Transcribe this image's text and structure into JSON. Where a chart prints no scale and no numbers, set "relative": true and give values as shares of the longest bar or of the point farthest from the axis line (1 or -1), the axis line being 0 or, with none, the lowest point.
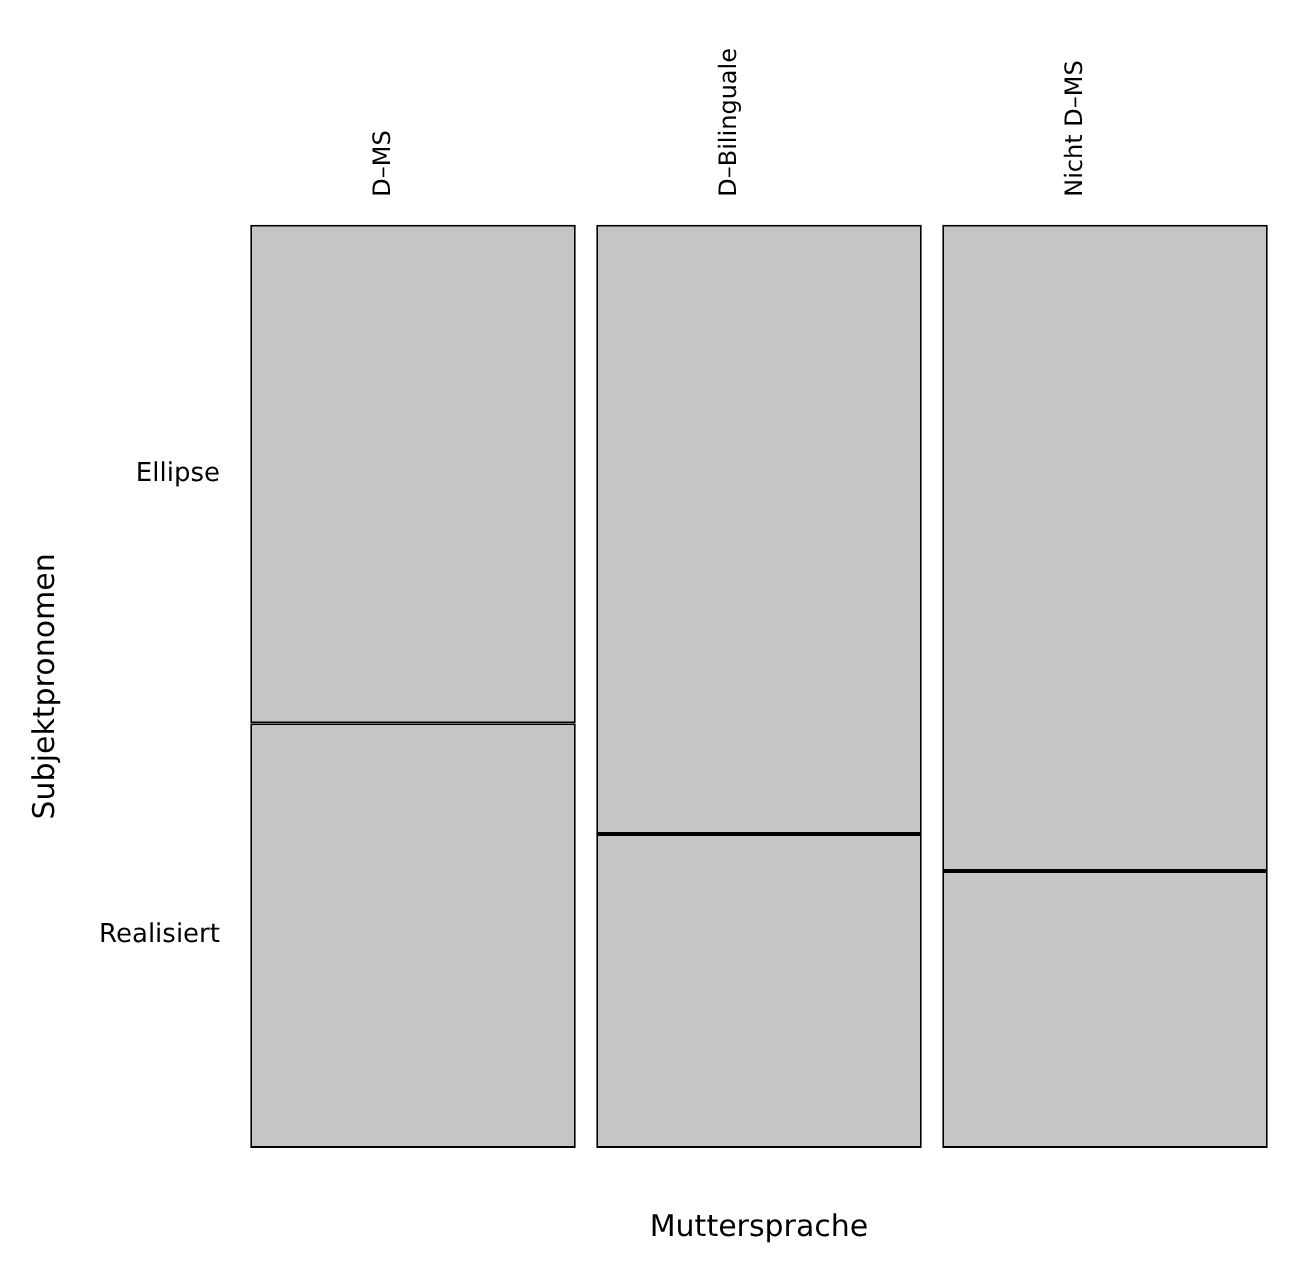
{
  "chart_data": {
    "type": "bar",
    "stacked": true,
    "relative": true,
    "xlabel": "Muttersprache",
    "ylabel": "Subjektpronomen",
    "categories": [
      "D–MS",
      "D–Bilinguale",
      "Nicht D–MS"
    ],
    "legend": false,
    "series": [
      {
        "name": "Realisiert",
        "color": "#c4c5c7",
        "values": [
          0.46,
          0.34,
          0.3
        ]
      },
      {
        "name": "Ellipse",
        "color": "#c4c5c7",
        "values": [
          0.54,
          0.66,
          0.7
        ]
      }
    ]
  }
}
